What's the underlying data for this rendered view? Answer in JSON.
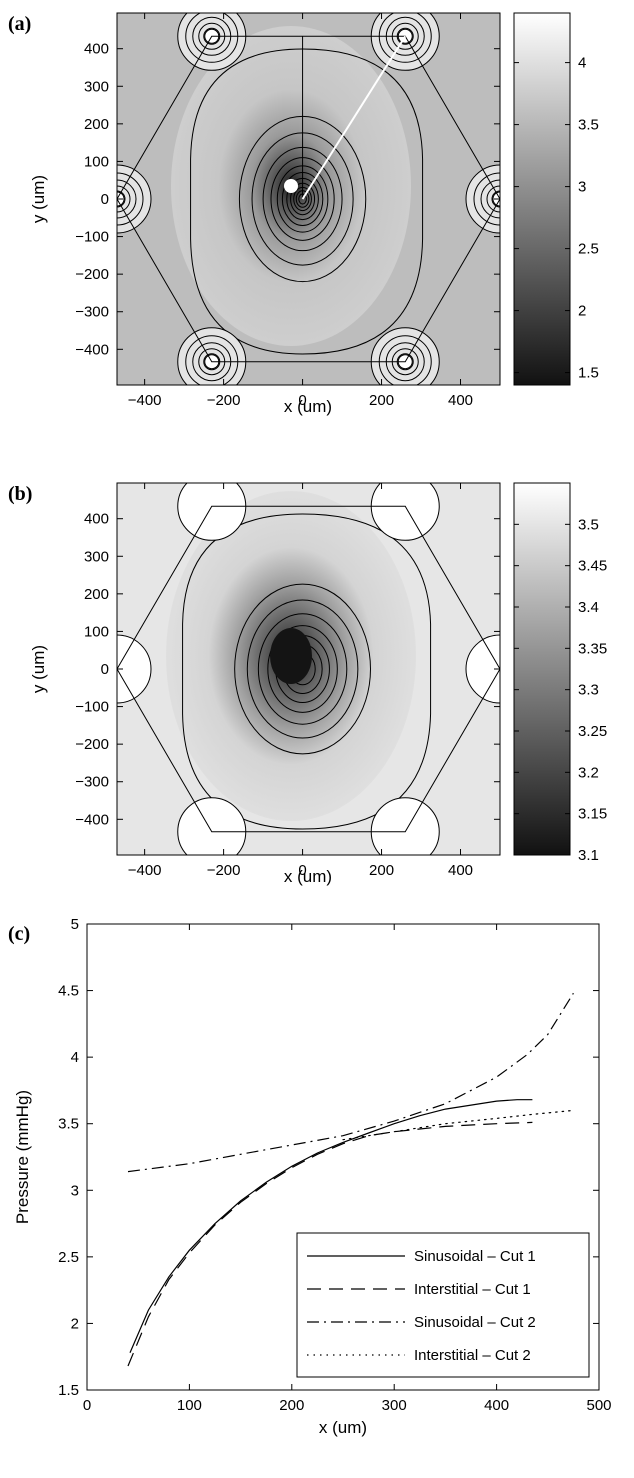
{
  "panels": {
    "a": {
      "label": "(a)",
      "xlabel": "x (um)",
      "ylabel": "y (um)",
      "xticks": [
        "−400",
        "−200",
        "0",
        "200",
        "400"
      ],
      "yticks": [
        "400",
        "300",
        "200",
        "100",
        "0",
        "−100",
        "−200",
        "−300",
        "−400"
      ],
      "colorbar_ticks": [
        "4",
        "3.5",
        "3",
        "2.5",
        "2",
        "1.5"
      ]
    },
    "b": {
      "label": "(b)",
      "xlabel": "x (um)",
      "ylabel": "y (um)",
      "xticks": [
        "−400",
        "−200",
        "0",
        "200",
        "400"
      ],
      "yticks": [
        "400",
        "300",
        "200",
        "100",
        "0",
        "−100",
        "−200",
        "−300",
        "−400"
      ],
      "colorbar_ticks": [
        "3.5",
        "3.45",
        "3.4",
        "3.35",
        "3.3",
        "3.25",
        "3.2",
        "3.15",
        "3.1"
      ]
    },
    "c": {
      "label": "(c)",
      "xlabel": "x (um)",
      "ylabel": "Pressure (mmHg)",
      "xticks": [
        "0",
        "100",
        "200",
        "300",
        "400",
        "500"
      ],
      "yticks": [
        "5",
        "4.5",
        "4",
        "3.5",
        "3",
        "2.5",
        "2",
        "1.5"
      ],
      "legend": [
        "Sinusoidal – Cut 1",
        "Interstitial – Cut 1",
        "Sinusoidal – Cut 2",
        "Interstitial – Cut 2"
      ]
    }
  },
  "chart_data": [
    {
      "type": "heatmap",
      "panel": "a",
      "description_units": "x (um), y (um), pressure mmHg",
      "xlim": [
        -470,
        500
      ],
      "ylim": [
        -495,
        495
      ],
      "color_range": [
        1.4,
        4.4
      ],
      "colormap": "gray",
      "lobule_vertices": [
        [
          -230,
          433
        ],
        [
          260,
          433
        ],
        [
          500,
          0
        ],
        [
          260,
          -433
        ],
        [
          -230,
          -433
        ],
        [
          -470,
          0
        ]
      ],
      "central_vein": [
        0,
        0
      ],
      "portal_sources": [
        [
          -230,
          433
        ],
        [
          260,
          433
        ],
        [
          -470,
          0
        ],
        [
          500,
          0
        ],
        [
          -230,
          -433
        ],
        [
          260,
          -433
        ]
      ],
      "cut_line": [
        [
          0,
          0
        ],
        [
          260,
          433
        ]
      ]
    },
    {
      "type": "heatmap",
      "panel": "b",
      "xlim": [
        -470,
        500
      ],
      "ylim": [
        -495,
        495
      ],
      "color_range": [
        3.1,
        3.55
      ],
      "colormap": "gray",
      "lobule_vertices": [
        [
          -230,
          433
        ],
        [
          260,
          433
        ],
        [
          500,
          0
        ],
        [
          260,
          -433
        ],
        [
          -230,
          -433
        ],
        [
          -470,
          0
        ]
      ],
      "central_vein": [
        0,
        0
      ]
    },
    {
      "type": "line",
      "panel": "c",
      "xlim": [
        0,
        500
      ],
      "ylim": [
        1.5,
        5
      ],
      "series": [
        {
          "name": "Sinusoidal – Cut 1",
          "style": "solid",
          "x": [
            42,
            60,
            80,
            100,
            125,
            150,
            175,
            200,
            225,
            250,
            275,
            300,
            325,
            350,
            375,
            400,
            420,
            435
          ],
          "y": [
            1.78,
            2.1,
            2.35,
            2.55,
            2.75,
            2.92,
            3.06,
            3.18,
            3.28,
            3.36,
            3.43,
            3.5,
            3.56,
            3.61,
            3.64,
            3.67,
            3.68,
            3.68
          ]
        },
        {
          "name": "Interstitial – Cut 1",
          "style": "dashed",
          "x": [
            40,
            60,
            80,
            100,
            125,
            150,
            175,
            200,
            225,
            250,
            275,
            300,
            325,
            350,
            375,
            400,
            435
          ],
          "y": [
            1.68,
            2.05,
            2.33,
            2.53,
            2.74,
            2.91,
            3.05,
            3.17,
            3.27,
            3.35,
            3.41,
            3.44,
            3.46,
            3.48,
            3.49,
            3.5,
            3.51
          ]
        },
        {
          "name": "Sinusoidal – Cut 2",
          "style": "dashdot",
          "x": [
            40,
            100,
            150,
            200,
            250,
            300,
            350,
            400,
            430,
            450,
            475
          ],
          "y": [
            3.14,
            3.2,
            3.27,
            3.34,
            3.41,
            3.52,
            3.65,
            3.85,
            4.02,
            4.17,
            4.48
          ]
        },
        {
          "name": "Interstitial – Cut 2",
          "style": "dotted",
          "x": [
            250,
            300,
            350,
            400,
            435,
            475
          ],
          "y": [
            3.38,
            3.44,
            3.5,
            3.54,
            3.57,
            3.6
          ]
        }
      ]
    }
  ]
}
